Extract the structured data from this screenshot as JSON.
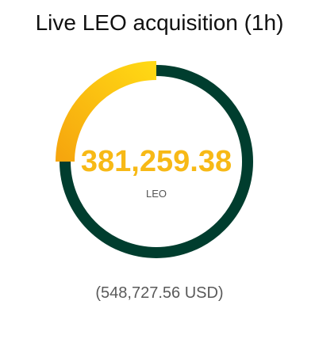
{
  "widget": {
    "title": "Live LEO acquisition (1h)",
    "value": "381,259.38",
    "unit": "LEO",
    "usd_value": "(548,727.56 USD)"
  },
  "gauge": {
    "progress_fraction": 0.25,
    "track_color": "#003d2e",
    "arc_color_start": "#f6a60e",
    "arc_color_end": "#ffd814"
  },
  "colors": {
    "value_text": "#f7b916",
    "title_text": "#111111",
    "usd_text": "#5a5a5a",
    "unit_text": "#555555"
  }
}
